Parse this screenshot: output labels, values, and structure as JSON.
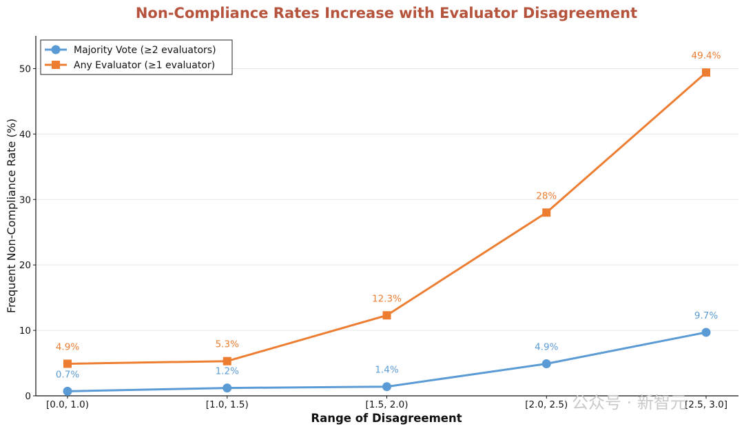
{
  "chart_data": {
    "type": "line",
    "title": "Non-Compliance Rates Increase with Evaluator Disagreement",
    "xlabel": "Range of Disagreement",
    "ylabel": "Frequent Non-Compliance Rate (%)",
    "categories": [
      "[0.0, 1.0)",
      "[1.0, 1.5)",
      "[1.5, 2.0)",
      "[2.0, 2.5)",
      "[2.5, 3.0]"
    ],
    "ylim": [
      0,
      55
    ],
    "yticks": [
      0,
      10,
      20,
      30,
      40,
      50
    ],
    "grid": "y-only",
    "legend_position": "top-left",
    "series": [
      {
        "name": "Majority Vote (≥2 evaluators)",
        "values": [
          0.7,
          1.2,
          1.4,
          4.9,
          9.7
        ],
        "labels": [
          "0.7%",
          "1.2%",
          "1.4%",
          "4.9%",
          "9.7%"
        ],
        "color": "#5b9bd5",
        "marker": "circle"
      },
      {
        "name": "Any Evaluator (≥1 evaluator)",
        "values": [
          4.9,
          5.3,
          12.3,
          28.0,
          49.4
        ],
        "labels": [
          "4.9%",
          "5.3%",
          "12.3%",
          "28%",
          "49.4%"
        ],
        "color": "#ed7d31",
        "marker": "square"
      }
    ],
    "title_color": "#b5533c"
  },
  "watermark": "公众号 · 新智元"
}
